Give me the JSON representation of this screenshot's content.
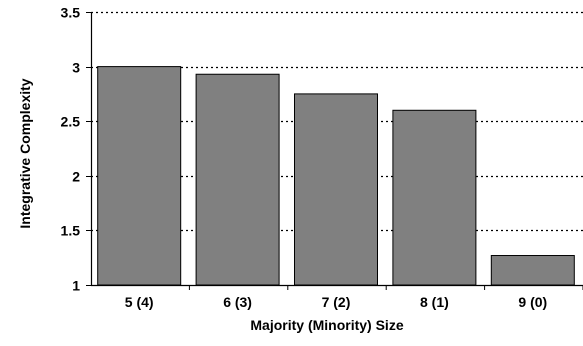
{
  "chart_data": {
    "type": "bar",
    "title": "",
    "xlabel": "Majority (Minority) Size",
    "ylabel": "Integrative Complexity",
    "categories": [
      "5 (4)",
      "6 (3)",
      "7 (2)",
      "8 (1)",
      "9 (0)"
    ],
    "values": [
      3.0,
      2.93,
      2.75,
      2.6,
      1.27
    ],
    "ylim": [
      1,
      3.5
    ],
    "yticks": [
      "1",
      "1.5",
      "2",
      "2.5",
      "3",
      "3.5"
    ],
    "grid": "horizontal dotted",
    "colors": {
      "bar_fill": "#808080",
      "bar_stroke": "#000000",
      "axis": "#000000",
      "grid": "#000000"
    }
  }
}
